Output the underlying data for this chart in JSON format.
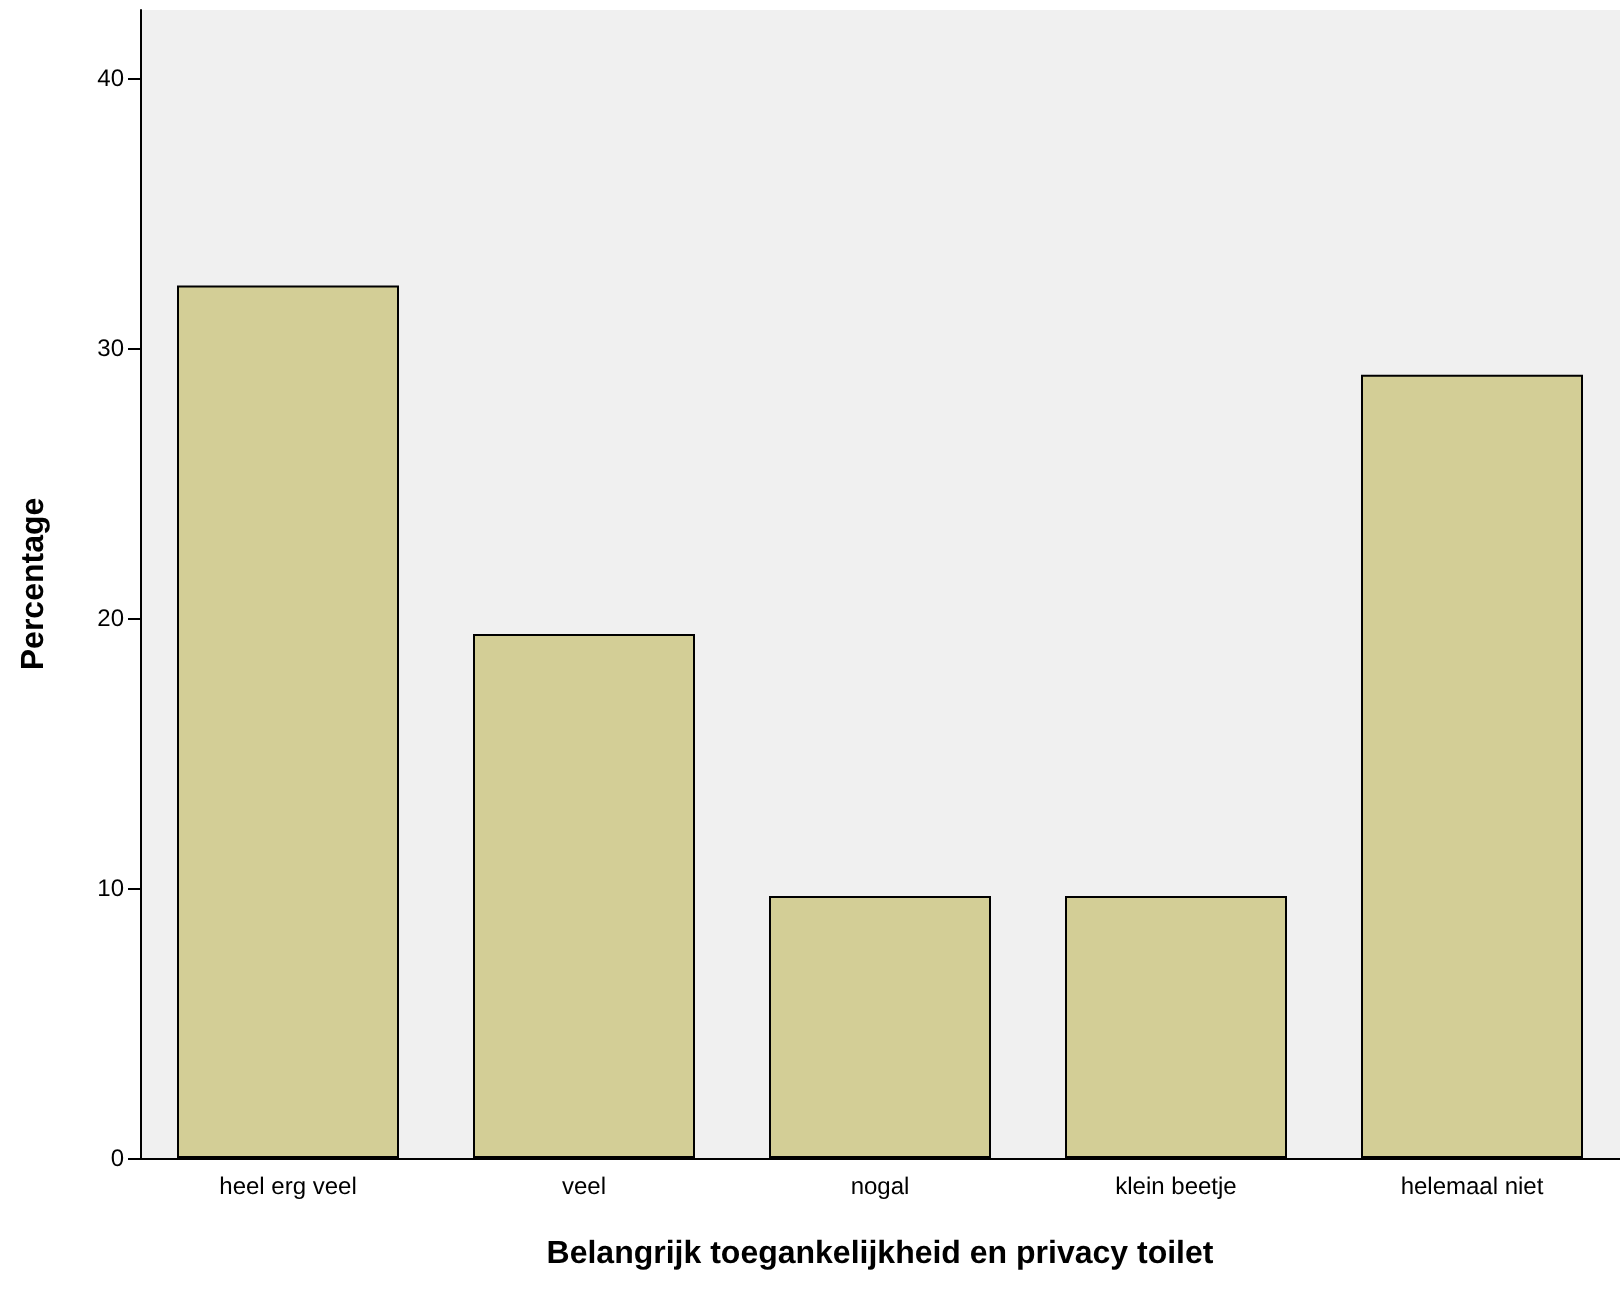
{
  "chart_data": {
    "type": "bar",
    "xlabel": "Belangrijk toegankelijkheid en privacy toilet",
    "ylabel": "Percentage",
    "categories": [
      "heel erg veel",
      "veel",
      "nogal",
      "klein beetje",
      "helemaal niet"
    ],
    "values": [
      32.3,
      19.4,
      9.7,
      9.7,
      29.0
    ],
    "color": "#d3ce96",
    "ylim": [
      0,
      42.5
    ],
    "yticks": [
      0,
      10,
      20,
      30,
      40
    ],
    "grid": false
  }
}
